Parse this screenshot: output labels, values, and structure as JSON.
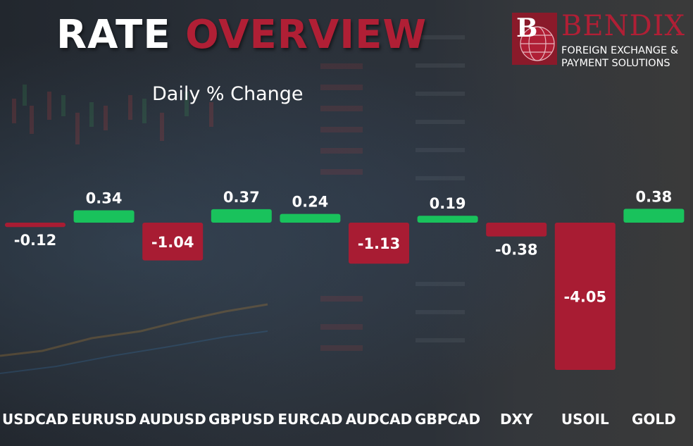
{
  "header": {
    "title_part1": "RATE",
    "title_part2": "OVERVIEW",
    "subtitle": "Daily % Change"
  },
  "logo": {
    "letter": "B",
    "name": "BENDIX",
    "tagline_line1": "FOREIGN EXCHANGE &",
    "tagline_line2": "PAYMENT SOLUTIONS"
  },
  "colors": {
    "positive": "#19c25c",
    "negative": "#a81c33",
    "brand": "#b01f35",
    "text": "#ffffff"
  },
  "chart_data": {
    "type": "bar",
    "title": "",
    "subtitle": "Daily % Change",
    "xlabel": "",
    "ylabel": "",
    "categories": [
      "USDCAD",
      "EURUSD",
      "AUDUSD",
      "GBPUSD",
      "EURCAD",
      "AUDCAD",
      "GBPCAD",
      "DXY",
      "USOIL",
      "GOLD"
    ],
    "values": [
      -0.12,
      0.34,
      -1.04,
      0.37,
      0.24,
      -1.13,
      0.19,
      -0.38,
      -4.05,
      0.38
    ],
    "value_labels": [
      "-0.12",
      "0.34",
      "-1.04",
      "0.37",
      "0.24",
      "-1.13",
      "0.19",
      "-0.38",
      "-4.05",
      "0.38"
    ],
    "ylim": [
      -4.05,
      0.38
    ],
    "grid": false,
    "legend": "none"
  }
}
